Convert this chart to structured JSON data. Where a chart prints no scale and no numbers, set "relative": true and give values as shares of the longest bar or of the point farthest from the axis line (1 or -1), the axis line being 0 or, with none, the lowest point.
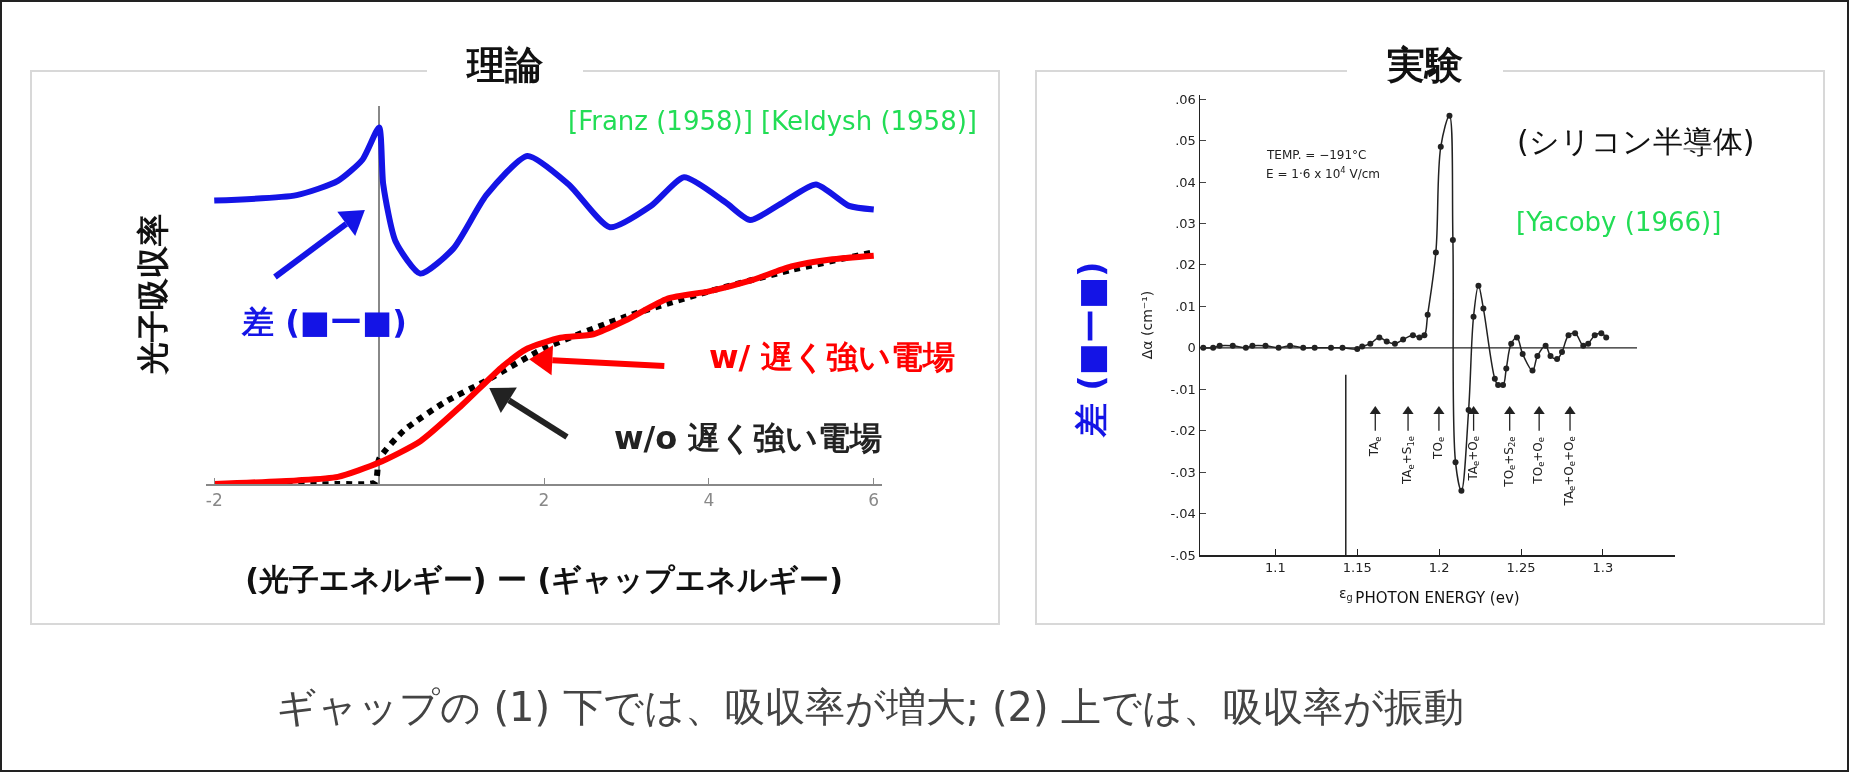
{
  "chart_data": [
    {
      "type": "line",
      "title": "理論",
      "xlabel": "(光子エネルギー) ー (ギャップエネルギー)",
      "ylabel": "光子吸収率",
      "relative": true,
      "xlim": [
        -2.1,
        6.1
      ],
      "xticks": [
        -2,
        2,
        4,
        6
      ],
      "series": [
        {
          "color": "#1414e6",
          "line_style": "solid",
          "x": [
            -2,
            -1,
            -0.5,
            -0.2,
            0,
            0.05,
            0.2,
            0.5,
            0.9,
            1.3,
            1.8,
            2.3,
            2.8,
            3.3,
            3.7,
            4.2,
            4.5,
            4.9,
            5.3,
            5.7,
            6
          ],
          "values": [
            0.795,
            0.81,
            0.85,
            0.91,
            1.0,
            0.84,
            0.68,
            0.59,
            0.66,
            0.81,
            0.92,
            0.84,
            0.72,
            0.78,
            0.86,
            0.79,
            0.74,
            0.79,
            0.84,
            0.78,
            0.77
          ]
        },
        {
          "color": "#000000",
          "line_style": "dotted",
          "x": [
            -2,
            -0.5,
            -0.05,
            0,
            0.3,
            0.8,
            1.3,
            2,
            3,
            4,
            5,
            6
          ],
          "values": [
            0,
            0,
            0.005,
            0.07,
            0.15,
            0.23,
            0.29,
            0.38,
            0.47,
            0.54,
            0.6,
            0.65
          ]
        },
        {
          "color": "#ff0000",
          "line_style": "solid",
          "x": [
            -2,
            -1,
            -0.5,
            0,
            0.5,
            1,
            1.5,
            1.8,
            2.2,
            2.6,
            3,
            3.5,
            4,
            4.5,
            5,
            5.5,
            6
          ],
          "values": [
            0,
            0.01,
            0.02,
            0.06,
            0.12,
            0.22,
            0.33,
            0.38,
            0.41,
            0.42,
            0.46,
            0.52,
            0.54,
            0.57,
            0.61,
            0.63,
            0.64
          ]
        }
      ],
      "annotations": [
        "[Franz (1958)] [Keldysh (1958)]",
        "差 (■ー■)",
        "w/ 遅く強い電場",
        "w/o 遅く強い電場"
      ]
    },
    {
      "type": "line",
      "title": "実験",
      "xlabel": "PHOTON ENERGY (ev)",
      "ylabel": "Δα (cm⁻¹)",
      "marker": "circle",
      "xlim": [
        1.054,
        1.344
      ],
      "xticks": [
        {
          "value": 1.1,
          "label": "1.1"
        },
        {
          "value": 1.15,
          "label": "1.15"
        },
        {
          "value": 1.2,
          "label": "1.2"
        },
        {
          "value": 1.25,
          "label": "1.25"
        },
        {
          "value": 1.3,
          "label": "1.3"
        }
      ],
      "ylim": [
        -0.05,
        0.061
      ],
      "yticks": [
        {
          "value": 0.06,
          "label": ".06"
        },
        {
          "value": 0.05,
          "label": ".05"
        },
        {
          "value": 0.04,
          "label": ".04"
        },
        {
          "value": 0.03,
          "label": ".03"
        },
        {
          "value": 0.02,
          "label": ".02"
        },
        {
          "value": 0.01,
          "label": ".01"
        },
        {
          "value": 0,
          "label": "0"
        },
        {
          "value": -0.01,
          "label": "-.01"
        },
        {
          "value": -0.02,
          "label": "-.02"
        },
        {
          "value": -0.03,
          "label": "-.03"
        },
        {
          "value": -0.04,
          "label": "-.04"
        },
        {
          "value": -0.05,
          "label": "-.05"
        }
      ],
      "x": [
        1.056,
        1.062,
        1.066,
        1.074,
        1.082,
        1.086,
        1.094,
        1.102,
        1.109,
        1.117,
        1.124,
        1.134,
        1.141,
        1.15,
        1.153,
        1.158,
        1.1635,
        1.168,
        1.173,
        1.178,
        1.184,
        1.188,
        1.191,
        1.193,
        1.198,
        1.201,
        1.2063,
        1.2084,
        1.21,
        1.2136,
        1.218,
        1.221,
        1.224,
        1.227,
        1.234,
        1.236,
        1.239,
        1.241,
        1.244,
        1.2475,
        1.251,
        1.257,
        1.26,
        1.265,
        1.268,
        1.272,
        1.275,
        1.279,
        1.283,
        1.288,
        1.291,
        1.295,
        1.299,
        1.302
      ],
      "series": [
        {
          "color": "#222222",
          "line_style": "solid",
          "values": [
            0,
            0,
            0.0005,
            0.0005,
            0,
            0.0005,
            0.0005,
            0,
            0.0005,
            0,
            0,
            0,
            0,
            -0.0003,
            0.0003,
            0.001,
            0.0025,
            0.0015,
            0.001,
            0.002,
            0.003,
            0.0025,
            0.003,
            0.008,
            0.023,
            0.0485,
            0.056,
            0.026,
            -0.0276,
            -0.0345,
            -0.015,
            0.0075,
            0.015,
            0.0095,
            -0.0075,
            -0.009,
            -0.009,
            -0.005,
            0.001,
            0.0025,
            -0.0015,
            -0.0055,
            -0.002,
            0.0005,
            -0.002,
            -0.0027,
            -0.001,
            0.003,
            0.0035,
            0.0005,
            0.001,
            0.003,
            0.0035,
            0.0025
          ]
        }
      ],
      "ref_lines": [
        {
          "axis": "y",
          "value": 0
        },
        {
          "axis": "x",
          "value": 1.143,
          "label": "ε$_{g}$"
        }
      ],
      "annotations": [
        "(シリコン半導体)",
        "[Yacoby (1966)]",
        "TEMP. = −191°C",
        "E = 1·6 x 10$^{4}$ V/cm",
        "差 (■ー■)",
        "TA$_{e}$",
        "TA$_{e}$+S$_{1e}$",
        "TO$_{e}$",
        "TA$_{e}$+O$_{e}$",
        "TO$_{e}$+S$_{2e}$",
        "TO$_{e}$+O$_{e}$",
        "TA$_{e}$+O$_{e}$+O$_{e}$",
        "ギャップの (1) 下では、吸収率が増大; (2) 上では、吸収率が振動"
      ]
    }
  ]
}
